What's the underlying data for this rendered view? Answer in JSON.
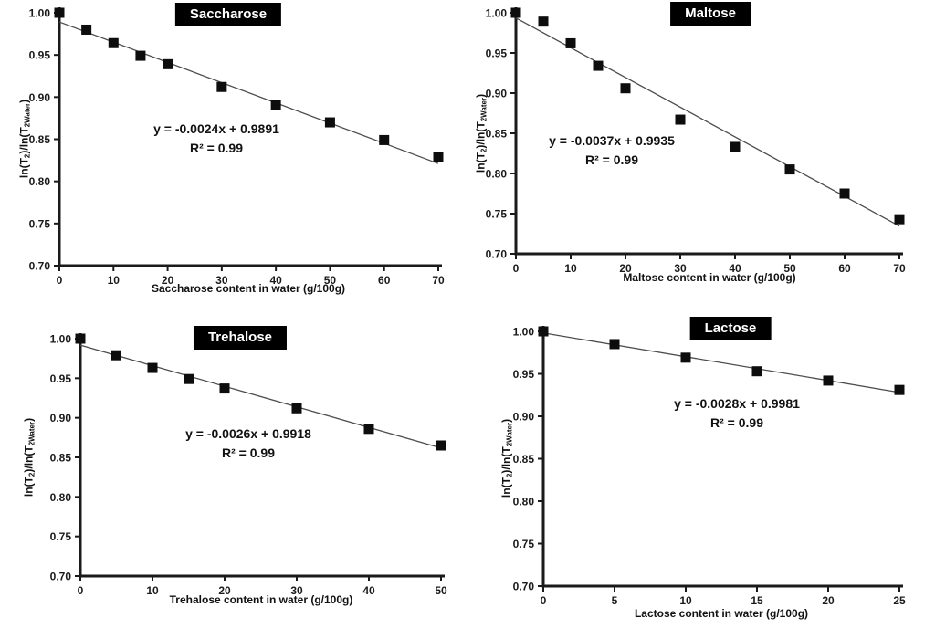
{
  "colors": {
    "marker": "#0d0d0d",
    "trendline": "#4d4d4d",
    "axis": "#1a1a1a",
    "title_bg": "#000000",
    "title_fg": "#ffffff",
    "text": "#111111",
    "background": "#ffffff"
  },
  "chart_data": [
    {
      "id": "saccharose",
      "type": "scatter",
      "title": "Saccharose",
      "xlabel": "Saccharose content in water (g/100g)",
      "ylabel_parts": [
        {
          "t": "ln(T"
        },
        {
          "t": "2",
          "sub": true
        },
        {
          "t": ")/ln(T"
        },
        {
          "t": "2Water",
          "sub": true
        },
        {
          "t": ")"
        }
      ],
      "x": [
        0,
        5,
        10,
        15,
        20,
        30,
        40,
        50,
        60,
        70
      ],
      "y": [
        1.0,
        0.98,
        0.964,
        0.949,
        0.939,
        0.912,
        0.891,
        0.87,
        0.849,
        0.829
      ],
      "trendline": {
        "slope": -0.0024,
        "intercept": 0.9891
      },
      "equation_line1": "y = -0.0024x + 0.9891",
      "equation_line2": "R² = 0.99",
      "xlim": [
        0,
        70
      ],
      "ylim": [
        0.7,
        1.0
      ],
      "xticks": [
        0,
        10,
        20,
        30,
        40,
        50,
        60,
        70
      ],
      "yticks": [
        "1.00",
        "0.95",
        "0.90",
        "0.85",
        "0.80",
        "0.75",
        "0.70"
      ],
      "grid": false,
      "legend": false,
      "marker": "square"
    },
    {
      "id": "maltose",
      "type": "scatter",
      "title": "Maltose",
      "xlabel": "Maltose content in water (g/100g)",
      "ylabel_parts": [
        {
          "t": "ln(T"
        },
        {
          "t": "2",
          "sub": true
        },
        {
          "t": ")/ln(T"
        },
        {
          "t": "2Water",
          "sub": true
        },
        {
          "t": ")"
        }
      ],
      "x": [
        0,
        5,
        10,
        15,
        20,
        30,
        40,
        50,
        60,
        70
      ],
      "y": [
        1.0,
        0.989,
        0.962,
        0.934,
        0.906,
        0.867,
        0.833,
        0.805,
        0.775,
        0.743
      ],
      "trendline": {
        "slope": -0.0037,
        "intercept": 0.9935
      },
      "equation_line1": "y = -0.0037x + 0.9935",
      "equation_line2": "R² = 0.99",
      "xlim": [
        0,
        70
      ],
      "ylim": [
        0.7,
        1.0
      ],
      "xticks": [
        0,
        10,
        20,
        30,
        40,
        50,
        60,
        70
      ],
      "yticks": [
        "1.00",
        "0.95",
        "0.90",
        "0.85",
        "0.80",
        "0.75",
        "0.70"
      ],
      "grid": false,
      "legend": false,
      "marker": "square"
    },
    {
      "id": "trehalose",
      "type": "scatter",
      "title": "Trehalose",
      "xlabel": "Trehalose content in water (g/100g)",
      "ylabel_parts": [
        {
          "t": "ln(T"
        },
        {
          "t": "2",
          "sub": true
        },
        {
          "t": ")/ln(T"
        },
        {
          "t": "2Water",
          "sub": true
        },
        {
          "t": ")"
        }
      ],
      "x": [
        0,
        5,
        10,
        15,
        20,
        30,
        40,
        50
      ],
      "y": [
        1.0,
        0.979,
        0.963,
        0.949,
        0.937,
        0.912,
        0.886,
        0.865
      ],
      "trendline": {
        "slope": -0.0026,
        "intercept": 0.9918
      },
      "equation_line1": "y = -0.0026x + 0.9918",
      "equation_line2": "R² = 0.99",
      "xlim": [
        0,
        50
      ],
      "ylim": [
        0.7,
        1.0
      ],
      "xticks": [
        0,
        10,
        20,
        30,
        40,
        50
      ],
      "yticks": [
        "1.00",
        "0.95",
        "0.90",
        "0.85",
        "0.80",
        "0.75",
        "0.70"
      ],
      "grid": false,
      "legend": false,
      "marker": "square"
    },
    {
      "id": "lactose",
      "type": "scatter",
      "title": "Lactose",
      "xlabel": "Lactose content in water (g/100g)",
      "ylabel_parts": [
        {
          "t": "ln(T"
        },
        {
          "t": "2",
          "sub": true
        },
        {
          "t": ")/ln(T"
        },
        {
          "t": "2Water",
          "sub": true
        },
        {
          "t": ")"
        }
      ],
      "x": [
        0,
        5,
        10,
        15,
        20,
        25
      ],
      "y": [
        1.0,
        0.985,
        0.969,
        0.953,
        0.942,
        0.931
      ],
      "trendline": {
        "slope": -0.0028,
        "intercept": 0.9981
      },
      "equation_line1": "y = -0.0028x + 0.9981",
      "equation_line2": "R² = 0.99",
      "xlim": [
        0,
        25
      ],
      "ylim": [
        0.7,
        1.0
      ],
      "xticks": [
        0,
        5,
        10,
        15,
        20,
        25
      ],
      "yticks": [
        "1.00",
        "0.95",
        "0.90",
        "0.85",
        "0.80",
        "0.75",
        "0.70"
      ],
      "grid": false,
      "legend": false,
      "marker": "square"
    }
  ]
}
